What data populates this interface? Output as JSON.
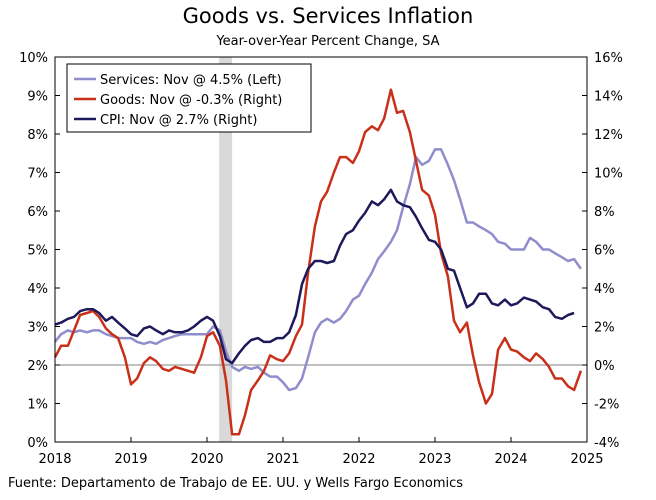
{
  "chart_data": {
    "type": "line",
    "title": "Goods vs. Services Inflation",
    "subtitle": "Year-over-Year Percent Change, SA",
    "source": "Fuente: Departamento de Trabajo de EE. UU. y Wells Fargo Economics",
    "x_ticks": [
      "2018",
      "2019",
      "2020",
      "2021",
      "2022",
      "2023",
      "2024",
      "2025"
    ],
    "xlim": [
      2018,
      2025
    ],
    "left_axis": {
      "ylim": [
        0,
        10
      ],
      "ticks": [
        "0%",
        "1%",
        "2%",
        "3%",
        "4%",
        "5%",
        "6%",
        "7%",
        "8%",
        "9%",
        "10%"
      ]
    },
    "right_axis": {
      "ylim": [
        -4,
        16
      ],
      "ticks": [
        "-4%",
        "-2%",
        "0%",
        "2%",
        "4%",
        "6%",
        "8%",
        "10%",
        "12%",
        "14%",
        "16%"
      ]
    },
    "recession_band": [
      2020.16,
      2020.33
    ],
    "legend_position": "top-left",
    "legend": [
      {
        "label": "Services: Nov @ 4.5% (Left)",
        "color": "#8f8dcc"
      },
      {
        "label": "Goods: Nov @ -0.3% (Right)",
        "color": "#c8301a"
      },
      {
        "label": "CPI: Nov @ 2.7% (Right)",
        "color": "#1c1a5a"
      }
    ],
    "series": [
      {
        "name": "Services",
        "axis": "left",
        "color": "#8f8dcc",
        "points": [
          [
            2018.0,
            2.6
          ],
          [
            2018.08,
            2.8
          ],
          [
            2018.17,
            2.9
          ],
          [
            2018.25,
            2.85
          ],
          [
            2018.33,
            2.9
          ],
          [
            2018.42,
            2.85
          ],
          [
            2018.5,
            2.9
          ],
          [
            2018.58,
            2.9
          ],
          [
            2018.67,
            2.8
          ],
          [
            2018.75,
            2.75
          ],
          [
            2018.83,
            2.7
          ],
          [
            2018.92,
            2.7
          ],
          [
            2019.0,
            2.7
          ],
          [
            2019.08,
            2.6
          ],
          [
            2019.17,
            2.55
          ],
          [
            2019.25,
            2.6
          ],
          [
            2019.33,
            2.55
          ],
          [
            2019.42,
            2.65
          ],
          [
            2019.5,
            2.7
          ],
          [
            2019.58,
            2.75
          ],
          [
            2019.67,
            2.8
          ],
          [
            2019.75,
            2.8
          ],
          [
            2019.83,
            2.8
          ],
          [
            2019.92,
            2.8
          ],
          [
            2020.0,
            2.8
          ],
          [
            2020.08,
            3.0
          ],
          [
            2020.17,
            2.9
          ],
          [
            2020.25,
            2.35
          ],
          [
            2020.33,
            1.95
          ],
          [
            2020.42,
            1.85
          ],
          [
            2020.5,
            1.95
          ],
          [
            2020.58,
            1.9
          ],
          [
            2020.67,
            1.95
          ],
          [
            2020.75,
            1.8
          ],
          [
            2020.83,
            1.7
          ],
          [
            2020.92,
            1.7
          ],
          [
            2021.0,
            1.55
          ],
          [
            2021.08,
            1.35
          ],
          [
            2021.17,
            1.4
          ],
          [
            2021.25,
            1.65
          ],
          [
            2021.33,
            2.2
          ],
          [
            2021.42,
            2.85
          ],
          [
            2021.5,
            3.1
          ],
          [
            2021.58,
            3.2
          ],
          [
            2021.67,
            3.1
          ],
          [
            2021.75,
            3.2
          ],
          [
            2021.83,
            3.4
          ],
          [
            2021.92,
            3.7
          ],
          [
            2022.0,
            3.8
          ],
          [
            2022.08,
            4.1
          ],
          [
            2022.17,
            4.4
          ],
          [
            2022.25,
            4.75
          ],
          [
            2022.33,
            4.95
          ],
          [
            2022.42,
            5.2
          ],
          [
            2022.5,
            5.5
          ],
          [
            2022.58,
            6.1
          ],
          [
            2022.67,
            6.7
          ],
          [
            2022.75,
            7.4
          ],
          [
            2022.83,
            7.2
          ],
          [
            2022.92,
            7.3
          ],
          [
            2023.0,
            7.6
          ],
          [
            2023.08,
            7.6
          ],
          [
            2023.17,
            7.2
          ],
          [
            2023.25,
            6.8
          ],
          [
            2023.33,
            6.3
          ],
          [
            2023.42,
            5.7
          ],
          [
            2023.5,
            5.7
          ],
          [
            2023.58,
            5.6
          ],
          [
            2023.67,
            5.5
          ],
          [
            2023.75,
            5.4
          ],
          [
            2023.83,
            5.2
          ],
          [
            2023.92,
            5.15
          ],
          [
            2024.0,
            5.0
          ],
          [
            2024.08,
            5.0
          ],
          [
            2024.17,
            5.0
          ],
          [
            2024.25,
            5.3
          ],
          [
            2024.33,
            5.2
          ],
          [
            2024.42,
            5.0
          ],
          [
            2024.5,
            5.0
          ],
          [
            2024.58,
            4.9
          ],
          [
            2024.67,
            4.8
          ],
          [
            2024.75,
            4.7
          ],
          [
            2024.83,
            4.75
          ],
          [
            2024.92,
            4.5
          ]
        ]
      },
      {
        "name": "Goods",
        "axis": "right",
        "color": "#c8301a",
        "points": [
          [
            2018.0,
            0.4
          ],
          [
            2018.08,
            1.0
          ],
          [
            2018.17,
            1.0
          ],
          [
            2018.25,
            1.8
          ],
          [
            2018.33,
            2.6
          ],
          [
            2018.42,
            2.7
          ],
          [
            2018.5,
            2.8
          ],
          [
            2018.58,
            2.5
          ],
          [
            2018.67,
            1.9
          ],
          [
            2018.75,
            1.6
          ],
          [
            2018.83,
            1.4
          ],
          [
            2018.92,
            0.4
          ],
          [
            2019.0,
            -1.0
          ],
          [
            2019.08,
            -0.7
          ],
          [
            2019.17,
            0.1
          ],
          [
            2019.25,
            0.4
          ],
          [
            2019.33,
            0.2
          ],
          [
            2019.42,
            -0.2
          ],
          [
            2019.5,
            -0.3
          ],
          [
            2019.58,
            -0.1
          ],
          [
            2019.67,
            -0.2
          ],
          [
            2019.75,
            -0.3
          ],
          [
            2019.83,
            -0.4
          ],
          [
            2019.92,
            0.4
          ],
          [
            2020.0,
            1.5
          ],
          [
            2020.08,
            1.7
          ],
          [
            2020.17,
            1.0
          ],
          [
            2020.25,
            -0.8
          ],
          [
            2020.33,
            -3.6
          ],
          [
            2020.42,
            -3.6
          ],
          [
            2020.5,
            -2.6
          ],
          [
            2020.58,
            -1.3
          ],
          [
            2020.67,
            -0.8
          ],
          [
            2020.75,
            -0.3
          ],
          [
            2020.83,
            0.5
          ],
          [
            2020.92,
            0.3
          ],
          [
            2021.0,
            0.2
          ],
          [
            2021.08,
            0.6
          ],
          [
            2021.17,
            1.5
          ],
          [
            2021.25,
            2.1
          ],
          [
            2021.33,
            4.8
          ],
          [
            2021.42,
            7.2
          ],
          [
            2021.5,
            8.5
          ],
          [
            2021.58,
            9.0
          ],
          [
            2021.67,
            10.0
          ],
          [
            2021.75,
            10.8
          ],
          [
            2021.83,
            10.8
          ],
          [
            2021.92,
            10.5
          ],
          [
            2022.0,
            11.1
          ],
          [
            2022.08,
            12.1
          ],
          [
            2022.17,
            12.4
          ],
          [
            2022.25,
            12.2
          ],
          [
            2022.33,
            12.8
          ],
          [
            2022.42,
            14.3
          ],
          [
            2022.5,
            13.1
          ],
          [
            2022.58,
            13.2
          ],
          [
            2022.67,
            12.1
          ],
          [
            2022.75,
            10.6
          ],
          [
            2022.83,
            9.1
          ],
          [
            2022.92,
            8.8
          ],
          [
            2023.0,
            7.8
          ],
          [
            2023.08,
            5.8
          ],
          [
            2023.17,
            4.6
          ],
          [
            2023.25,
            2.3
          ],
          [
            2023.33,
            1.7
          ],
          [
            2023.42,
            2.2
          ],
          [
            2023.5,
            0.5
          ],
          [
            2023.58,
            -0.9
          ],
          [
            2023.67,
            -2.0
          ],
          [
            2023.75,
            -1.5
          ],
          [
            2023.83,
            0.8
          ],
          [
            2023.92,
            1.4
          ],
          [
            2024.0,
            0.8
          ],
          [
            2024.08,
            0.7
          ],
          [
            2024.17,
            0.4
          ],
          [
            2024.25,
            0.2
          ],
          [
            2024.33,
            0.6
          ],
          [
            2024.42,
            0.3
          ],
          [
            2024.5,
            -0.1
          ],
          [
            2024.58,
            -0.7
          ],
          [
            2024.67,
            -0.7
          ],
          [
            2024.75,
            -1.1
          ],
          [
            2024.83,
            -1.3
          ],
          [
            2024.92,
            -0.3
          ]
        ]
      },
      {
        "name": "CPI",
        "axis": "right",
        "color": "#1c1a5a",
        "points": [
          [
            2018.0,
            2.1
          ],
          [
            2018.08,
            2.2
          ],
          [
            2018.17,
            2.4
          ],
          [
            2018.25,
            2.5
          ],
          [
            2018.33,
            2.8
          ],
          [
            2018.42,
            2.9
          ],
          [
            2018.5,
            2.9
          ],
          [
            2018.58,
            2.7
          ],
          [
            2018.67,
            2.3
          ],
          [
            2018.75,
            2.5
          ],
          [
            2018.83,
            2.2
          ],
          [
            2018.92,
            1.9
          ],
          [
            2019.0,
            1.6
          ],
          [
            2019.08,
            1.5
          ],
          [
            2019.17,
            1.9
          ],
          [
            2019.25,
            2.0
          ],
          [
            2019.33,
            1.8
          ],
          [
            2019.42,
            1.6
          ],
          [
            2019.5,
            1.8
          ],
          [
            2019.58,
            1.7
          ],
          [
            2019.67,
            1.7
          ],
          [
            2019.75,
            1.8
          ],
          [
            2019.83,
            2.0
          ],
          [
            2019.92,
            2.3
          ],
          [
            2020.0,
            2.5
          ],
          [
            2020.08,
            2.3
          ],
          [
            2020.17,
            1.5
          ],
          [
            2020.25,
            0.3
          ],
          [
            2020.33,
            0.1
          ],
          [
            2020.42,
            0.6
          ],
          [
            2020.5,
            1.0
          ],
          [
            2020.58,
            1.3
          ],
          [
            2020.67,
            1.4
          ],
          [
            2020.75,
            1.2
          ],
          [
            2020.83,
            1.2
          ],
          [
            2020.92,
            1.4
          ],
          [
            2021.0,
            1.4
          ],
          [
            2021.08,
            1.7
          ],
          [
            2021.17,
            2.6
          ],
          [
            2021.25,
            4.2
          ],
          [
            2021.33,
            5.0
          ],
          [
            2021.42,
            5.4
          ],
          [
            2021.5,
            5.4
          ],
          [
            2021.58,
            5.3
          ],
          [
            2021.67,
            5.4
          ],
          [
            2021.75,
            6.2
          ],
          [
            2021.83,
            6.8
          ],
          [
            2021.92,
            7.0
          ],
          [
            2022.0,
            7.5
          ],
          [
            2022.08,
            7.9
          ],
          [
            2022.17,
            8.5
          ],
          [
            2022.25,
            8.3
          ],
          [
            2022.33,
            8.6
          ],
          [
            2022.42,
            9.1
          ],
          [
            2022.5,
            8.5
          ],
          [
            2022.58,
            8.3
          ],
          [
            2022.67,
            8.2
          ],
          [
            2022.75,
            7.7
          ],
          [
            2022.83,
            7.1
          ],
          [
            2022.92,
            6.5
          ],
          [
            2023.0,
            6.4
          ],
          [
            2023.08,
            6.0
          ],
          [
            2023.17,
            5.0
          ],
          [
            2023.25,
            4.9
          ],
          [
            2023.33,
            4.0
          ],
          [
            2023.42,
            3.0
          ],
          [
            2023.5,
            3.2
          ],
          [
            2023.58,
            3.7
          ],
          [
            2023.67,
            3.7
          ],
          [
            2023.75,
            3.2
          ],
          [
            2023.83,
            3.1
          ],
          [
            2023.92,
            3.4
          ],
          [
            2024.0,
            3.1
          ],
          [
            2024.08,
            3.2
          ],
          [
            2024.17,
            3.5
          ],
          [
            2024.25,
            3.4
          ],
          [
            2024.33,
            3.3
          ],
          [
            2024.42,
            3.0
          ],
          [
            2024.5,
            2.9
          ],
          [
            2024.58,
            2.5
          ],
          [
            2024.67,
            2.4
          ],
          [
            2024.75,
            2.6
          ],
          [
            2024.83,
            2.7
          ]
        ]
      }
    ]
  }
}
